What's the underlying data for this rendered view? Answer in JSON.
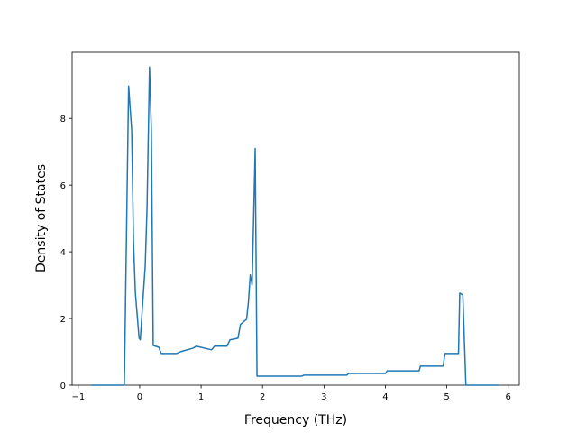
{
  "chart_data": {
    "type": "line",
    "x_label": "Frequency (THz)",
    "y_label": "Density of States",
    "series": [
      {
        "color": "#1f77b4",
        "x": [
          -0.78,
          -0.25,
          -0.18,
          -0.13,
          -0.1,
          -0.07,
          -0.04,
          -0.01,
          0.01,
          0.04,
          0.09,
          0.12,
          0.16,
          0.19,
          0.22,
          0.31,
          0.35,
          0.6,
          0.66,
          0.87,
          0.92,
          1.17,
          1.22,
          1.42,
          1.47,
          1.6,
          1.64,
          1.74,
          1.77,
          1.8,
          1.83,
          1.88,
          1.91,
          2.64,
          2.67,
          3.37,
          3.4,
          4.0,
          4.03,
          4.55,
          4.57,
          4.94,
          4.97,
          5.19,
          5.21,
          5.26,
          5.31,
          5.84
        ],
        "values": [
          0,
          0,
          8.97,
          7.64,
          4.25,
          2.76,
          2.09,
          1.41,
          1.36,
          2.22,
          3.58,
          5.34,
          9.54,
          7.64,
          1.19,
          1.14,
          0.95,
          0.95,
          1.0,
          1.11,
          1.17,
          1.06,
          1.17,
          1.17,
          1.36,
          1.41,
          1.82,
          1.98,
          2.49,
          3.31,
          3.01,
          7.1,
          0.27,
          0.27,
          0.3,
          0.3,
          0.35,
          0.35,
          0.43,
          0.43,
          0.57,
          0.57,
          0.95,
          0.95,
          2.76,
          2.71,
          0,
          0
        ]
      }
    ],
    "xlim": [
      -1.1,
      6.18
    ],
    "ylim": [
      0,
      9.98
    ],
    "xticks": [
      {
        "value": -1,
        "label": "−1"
      },
      0,
      1,
      2,
      3,
      4,
      5,
      6
    ],
    "yticks": [
      0,
      2,
      4,
      6,
      8
    ]
  }
}
